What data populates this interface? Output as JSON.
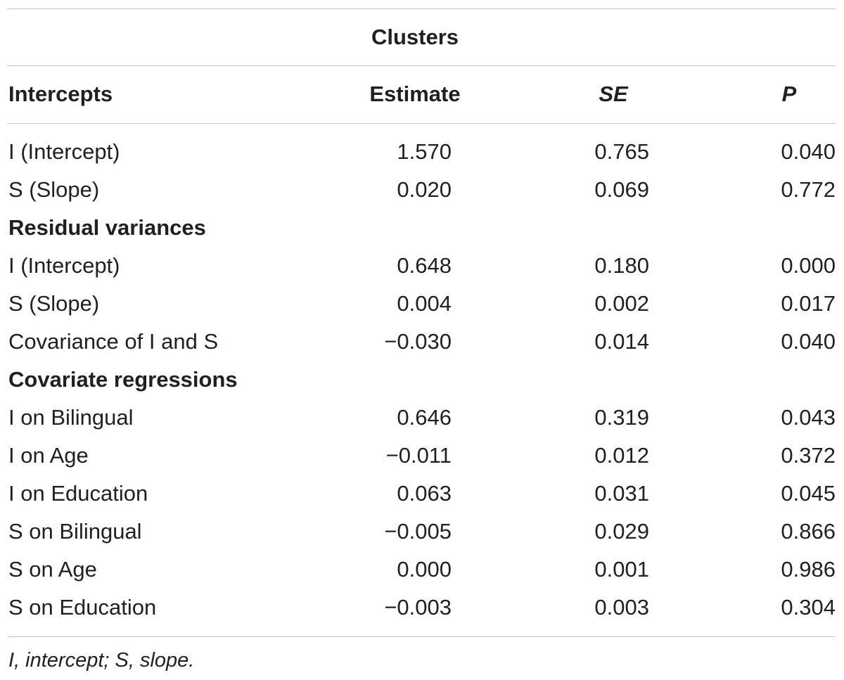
{
  "table": {
    "group_header": "Clusters",
    "columns": [
      "Intercepts",
      "Estimate",
      "SE",
      "P"
    ],
    "rows": [
      {
        "type": "data",
        "label": "I (Intercept)",
        "estimate": "1.570",
        "se": "0.765",
        "p": "0.040"
      },
      {
        "type": "data",
        "label": "S (Slope)",
        "estimate": "0.020",
        "se": "0.069",
        "p": "0.772"
      },
      {
        "type": "section",
        "label": "Residual variances"
      },
      {
        "type": "data",
        "label": "I (Intercept)",
        "estimate": "0.648",
        "se": "0.180",
        "p": "0.000"
      },
      {
        "type": "data",
        "label": "S (Slope)",
        "estimate": "0.004",
        "se": "0.002",
        "p": "0.017"
      },
      {
        "type": "data",
        "label": "Covariance of I and S",
        "estimate": "−0.030",
        "se": "0.014",
        "p": "0.040"
      },
      {
        "type": "section",
        "label": "Covariate regressions"
      },
      {
        "type": "data",
        "label": "I on Bilingual",
        "estimate": "0.646",
        "se": "0.319",
        "p": "0.043"
      },
      {
        "type": "data",
        "label": "I on Age",
        "estimate": "−0.011",
        "se": "0.012",
        "p": "0.372"
      },
      {
        "type": "data",
        "label": "I on Education",
        "estimate": "0.063",
        "se": "0.031",
        "p": "0.045"
      },
      {
        "type": "data",
        "label": "S on Bilingual",
        "estimate": "−0.005",
        "se": "0.029",
        "p": "0.866"
      },
      {
        "type": "data",
        "label": "S on Age",
        "estimate": "0.000",
        "se": "0.001",
        "p": "0.986"
      },
      {
        "type": "data",
        "label": "S on Education",
        "estimate": "−0.003",
        "se": "0.003",
        "p": "0.304"
      }
    ],
    "footnote": "I, intercept; S, slope."
  }
}
